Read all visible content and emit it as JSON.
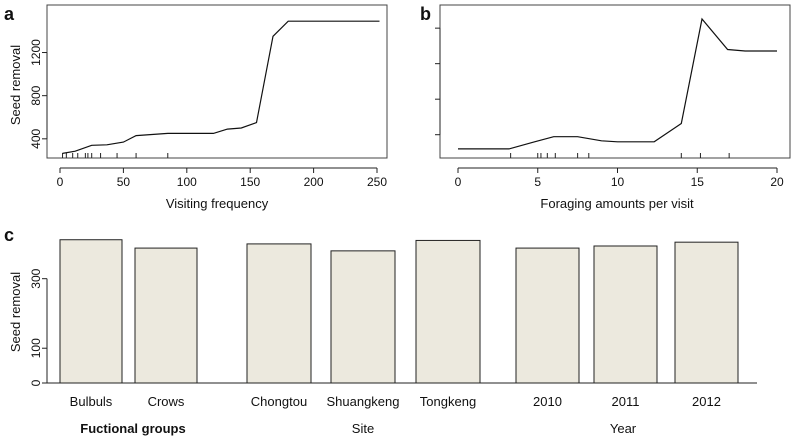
{
  "colors": {
    "bar_fill": "#ece9de",
    "line": "#111111",
    "axis": "#222222"
  },
  "chart_data": [
    {
      "panel": "a",
      "type": "line",
      "xlabel": "Visiting frequency",
      "ylabel": "Seed removal",
      "xlim": [
        0,
        250
      ],
      "ylim": [
        250,
        1520
      ],
      "xticks": [
        "0",
        "50",
        "100",
        "150",
        "200",
        "250"
      ],
      "yticks": [
        "400",
        "800",
        "1200"
      ],
      "x": [
        2,
        12,
        25,
        37,
        50,
        60,
        85,
        121,
        132,
        143,
        155,
        168,
        180,
        252
      ],
      "y": [
        265,
        285,
        340,
        345,
        370,
        430,
        450,
        450,
        490,
        500,
        550,
        1350,
        1490,
        1490
      ],
      "rug": [
        2,
        5,
        10,
        14,
        20,
        22,
        25,
        32,
        45,
        60,
        85
      ]
    },
    {
      "panel": "b",
      "type": "line",
      "xlabel": "Foraging amounts per visit",
      "ylabel": "",
      "xlim": [
        0,
        20
      ],
      "ylim": [
        150,
        1500
      ],
      "xticks": [
        "0",
        "5",
        "10",
        "15",
        "20"
      ],
      "yticks": [
        "",
        "",
        "",
        ""
      ],
      "x": [
        0,
        1.5,
        3.2,
        4.8,
        6.0,
        7.5,
        9,
        10,
        11,
        12.3,
        14,
        15.3,
        16.9,
        18,
        20
      ],
      "y": [
        210,
        210,
        210,
        280,
        330,
        330,
        290,
        280,
        280,
        280,
        460,
        1490,
        1190,
        1175,
        1175
      ],
      "rug": [
        3.3,
        5,
        5.2,
        5.6,
        6.1,
        7.5,
        8.2,
        14,
        15.2,
        17
      ]
    },
    {
      "panel": "c",
      "type": "bar",
      "ylabel": "Seed removal",
      "ylim": [
        0,
        440
      ],
      "yticks": [
        "0",
        "100",
        "300"
      ],
      "groups": [
        {
          "label": "Fuctional groups",
          "bold": true,
          "categories": [
            "Bulbuls",
            "Crows"
          ],
          "values": [
            412,
            388
          ]
        },
        {
          "label": "Site",
          "bold": false,
          "categories": [
            "Chongtou",
            "Shuangkeng",
            "Tongkeng"
          ],
          "values": [
            400,
            380,
            410
          ]
        },
        {
          "label": "Year",
          "bold": false,
          "categories": [
            "2010",
            "2011",
            "2012"
          ],
          "values": [
            388,
            394,
            405
          ]
        }
      ]
    }
  ],
  "panels": {
    "a": "a",
    "b": "b",
    "c": "c"
  }
}
